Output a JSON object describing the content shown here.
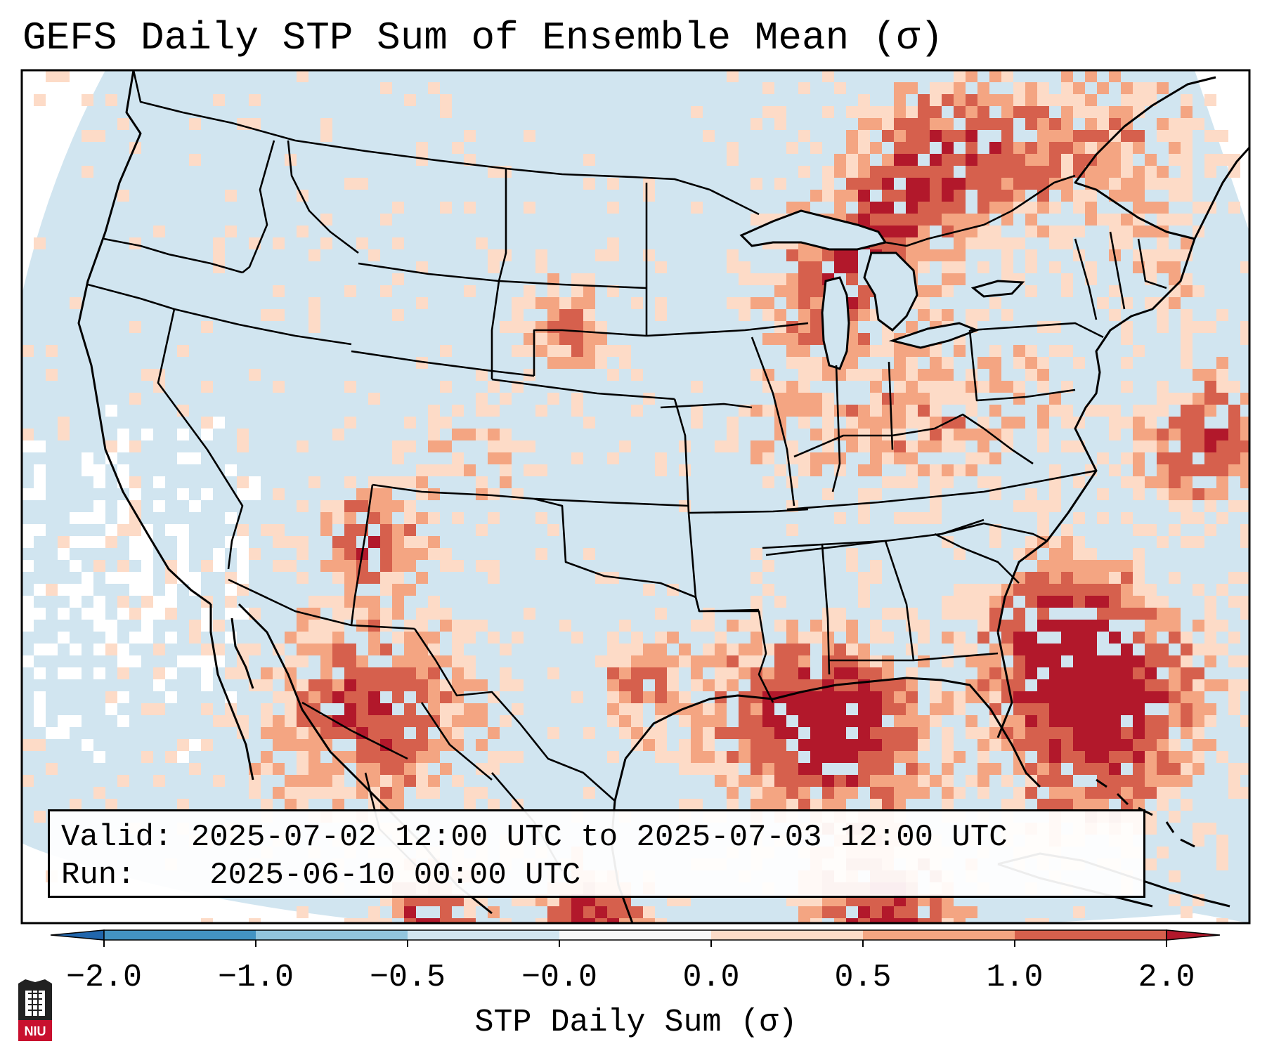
{
  "title": "GEFS Daily STP Sum of Ensemble Mean (σ)",
  "info": {
    "valid_label": "Valid:",
    "valid_value": "2025-07-02 12:00 UTC to 2025-07-03 12:00 UTC",
    "run_label": "Run:",
    "run_value": "2025-06-10 00:00 UTC"
  },
  "colorbar": {
    "label": "STP Daily Sum (σ)",
    "ticks": [
      "−2.0",
      "−1.0",
      "−0.5",
      "−0.0",
      "0.0",
      "0.5",
      "1.0",
      "2.0"
    ],
    "colors": [
      "#2166ac",
      "#4393c3",
      "#92c5de",
      "#d1e5f0",
      "#f7f7f7",
      "#fddbc7",
      "#f4a582",
      "#d6604d",
      "#b2182b"
    ],
    "extend": "both"
  },
  "map": {
    "region": "Contiguous United States",
    "ocean_color": "#d1e5f0",
    "outside_color": "#ffffff",
    "border_color": "#000000"
  },
  "logo": {
    "text": "NIU",
    "colors": [
      "#c8102e",
      "#222222"
    ]
  }
}
